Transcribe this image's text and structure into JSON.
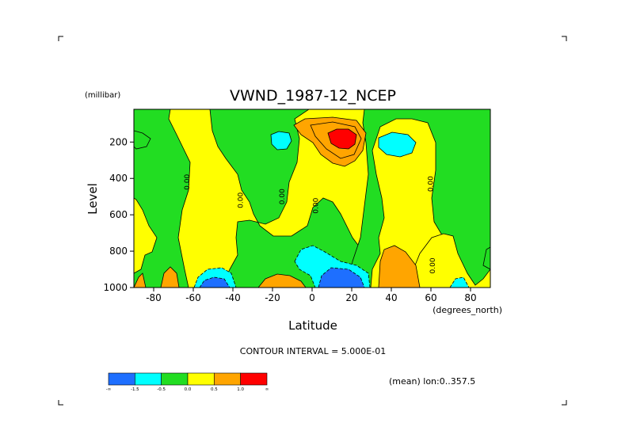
{
  "chart_data": {
    "type": "heatmap",
    "title": "VWND_1987-12_NCEP",
    "xlabel": "Latitude",
    "ylabel": "Level",
    "x_units": "(degrees_north)",
    "y_units": "(millibar)",
    "xlim": [
      -90,
      90
    ],
    "ylim": [
      1000,
      20
    ],
    "y_inverted": true,
    "x_ticks": [
      "-80",
      "-60",
      "-40",
      "-20",
      "0",
      "20",
      "40",
      "60",
      "80"
    ],
    "x_tick_values": [
      -80,
      -60,
      -40,
      -20,
      0,
      20,
      40,
      60,
      80
    ],
    "y_ticks": [
      "200",
      "400",
      "600",
      "800",
      "1000"
    ],
    "y_tick_values": [
      200,
      400,
      600,
      800,
      1000
    ],
    "contour_interval_text": "CONTOUR INTERVAL = 5.000E-01",
    "mean_text": "(mean) lon:0..357.5",
    "contour_labels": [
      {
        "text": "0.00",
        "x": -62,
        "y": 420
      },
      {
        "text": "0.00",
        "x": -35,
        "y": 520
      },
      {
        "text": "0.00",
        "x": -14,
        "y": 500
      },
      {
        "text": "0.00",
        "x": 3,
        "y": 550
      },
      {
        "text": "0.00",
        "x": 61,
        "y": 430
      },
      {
        "text": "0.00",
        "x": 62,
        "y": 880
      }
    ],
    "levels": {
      "edges": [
        "-∞",
        "-1.5",
        "-0.5",
        "0.0",
        "0.5",
        "1.0",
        "∞"
      ],
      "colors": [
        "#1e6fff",
        "#00ffff",
        "#22dd22",
        "#ffff00",
        "#ffa500",
        "#ff0000"
      ]
    },
    "features": [
      {
        "value": 1.0,
        "x_range": [
          -10,
          28
        ],
        "y_range": [
          60,
          320
        ],
        "note": "orange lobe aloft"
      },
      {
        "value": 2.0,
        "x_range": [
          6,
          22
        ],
        "y_range": [
          120,
          240
        ],
        "note": "red max aloft"
      },
      {
        "value": -1.0,
        "x_range": [
          -60,
          -35
        ],
        "y_range": [
          870,
          1000
        ],
        "note": "cyan near surface"
      },
      {
        "value": -2.0,
        "x_range": [
          -58,
          -42
        ],
        "y_range": [
          930,
          1000
        ],
        "note": "blue near surface"
      },
      {
        "value": -1.0,
        "x_range": [
          -10,
          30
        ],
        "y_range": [
          790,
          1000
        ],
        "note": "cyan near surface"
      },
      {
        "value": -2.0,
        "x_range": [
          5,
          25
        ],
        "y_range": [
          870,
          1000
        ],
        "note": "blue near surface"
      },
      {
        "value": -1.0,
        "x_range": [
          -28,
          -17
        ],
        "y_range": [
          110,
          230
        ],
        "note": "cyan aloft"
      },
      {
        "value": -1.0,
        "x_range": [
          36,
          58
        ],
        "y_range": [
          130,
          260
        ],
        "note": "cyan aloft"
      },
      {
        "value": 1.0,
        "x_range": [
          -30,
          -5
        ],
        "y_range": [
          900,
          1000
        ],
        "note": "orange near surface"
      },
      {
        "value": 1.0,
        "x_range": [
          40,
          62
        ],
        "y_range": [
          840,
          1000
        ],
        "note": "orange near surface"
      },
      {
        "value": 1.0,
        "x_range": [
          -95,
          -83
        ],
        "y_range": [
          920,
          1000
        ],
        "note": "orange near surface"
      },
      {
        "value": 1.0,
        "x_range": [
          -72,
          -63
        ],
        "y_range": [
          910,
          1000
        ],
        "note": "orange near surface"
      },
      {
        "value": -1.0,
        "x_range": [
          67,
          79
        ],
        "y_range": [
          950,
          1000
        ],
        "note": "cyan near surface"
      }
    ]
  }
}
